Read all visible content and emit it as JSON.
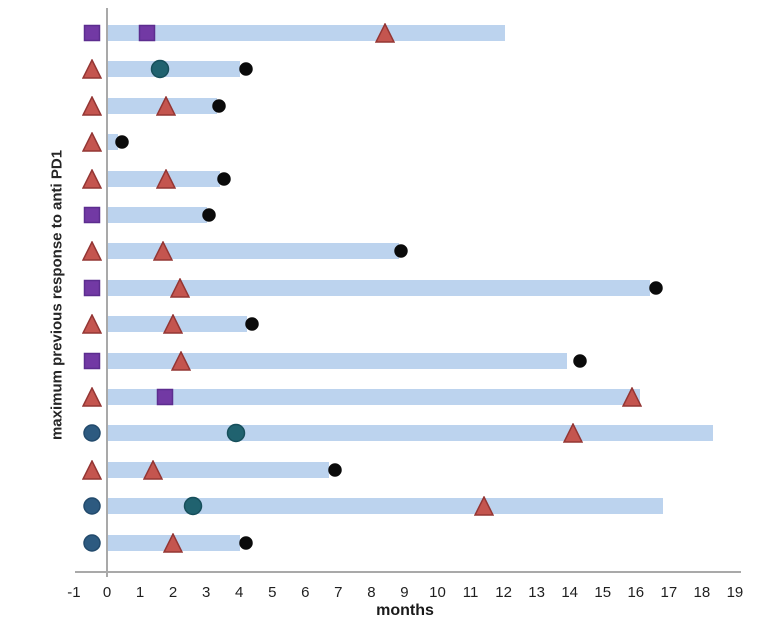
{
  "chart_data": {
    "type": "bar",
    "subtype": "swimmer-plot",
    "title": "",
    "xlabel": "months",
    "ylabel": "maximum previous response to anti PD1",
    "xlim": [
      -1,
      19
    ],
    "xticks": [
      "-1",
      "0",
      "1",
      "2",
      "3",
      "4",
      "5",
      "6",
      "7",
      "8",
      "9",
      "10",
      "11",
      "12",
      "13",
      "14",
      "15",
      "16",
      "17",
      "18",
      "19"
    ],
    "grid": false,
    "legend": null,
    "left_marker_x": -0.45,
    "colors": {
      "bar": "#bcd3ee",
      "axis": "#a9a9a9",
      "text": "#1f1f1f"
    },
    "marker_styles": {
      "purple-square": {
        "shape": "square",
        "fill": "#7239a4",
        "stroke": "#5c2d8f",
        "size": 17
      },
      "red-triangle": {
        "shape": "triangle",
        "fill": "#c4554f",
        "stroke": "#943634",
        "size": 20
      },
      "navy-circle": {
        "shape": "circle",
        "fill": "#2d5a80",
        "stroke": "#224a6c",
        "size": 18
      },
      "teal-circle": {
        "shape": "circle",
        "fill": "#20626f",
        "stroke": "#174f5b",
        "size": 19
      },
      "black-dot": {
        "shape": "circle",
        "fill": "#0b0b0b",
        "stroke": "#0b0b0b",
        "size": 14
      }
    },
    "rows": [
      {
        "left_marker": "purple-square",
        "bar_months": 12.0,
        "events": [
          {
            "marker": "purple-square",
            "x": 1.2
          },
          {
            "marker": "red-triangle",
            "x": 8.4
          }
        ]
      },
      {
        "left_marker": "red-triangle",
        "bar_months": 4.0,
        "events": [
          {
            "marker": "teal-circle",
            "x": 1.6
          },
          {
            "marker": "black-dot",
            "x": 4.2
          }
        ]
      },
      {
        "left_marker": "red-triangle",
        "bar_months": 3.3,
        "events": [
          {
            "marker": "red-triangle",
            "x": 1.8
          },
          {
            "marker": "black-dot",
            "x": 3.4
          }
        ]
      },
      {
        "left_marker": "red-triangle",
        "bar_months": 0.3,
        "events": [
          {
            "marker": "black-dot",
            "x": 0.45
          }
        ]
      },
      {
        "left_marker": "red-triangle",
        "bar_months": 3.4,
        "events": [
          {
            "marker": "red-triangle",
            "x": 1.8
          },
          {
            "marker": "black-dot",
            "x": 3.55
          }
        ]
      },
      {
        "left_marker": "purple-square",
        "bar_months": 3.0,
        "events": [
          {
            "marker": "black-dot",
            "x": 3.1
          }
        ]
      },
      {
        "left_marker": "red-triangle",
        "bar_months": 8.8,
        "events": [
          {
            "marker": "red-triangle",
            "x": 1.7
          },
          {
            "marker": "black-dot",
            "x": 8.9
          }
        ]
      },
      {
        "left_marker": "purple-square",
        "bar_months": 16.4,
        "events": [
          {
            "marker": "red-triangle",
            "x": 2.2
          },
          {
            "marker": "black-dot",
            "x": 16.6
          }
        ]
      },
      {
        "left_marker": "red-triangle",
        "bar_months": 4.2,
        "events": [
          {
            "marker": "red-triangle",
            "x": 2.0
          },
          {
            "marker": "black-dot",
            "x": 4.4
          }
        ]
      },
      {
        "left_marker": "purple-square",
        "bar_months": 13.9,
        "events": [
          {
            "marker": "red-triangle",
            "x": 2.25
          },
          {
            "marker": "black-dot",
            "x": 14.3
          }
        ]
      },
      {
        "left_marker": "red-triangle",
        "bar_months": 16.1,
        "events": [
          {
            "marker": "purple-square",
            "x": 1.75
          },
          {
            "marker": "red-triangle",
            "x": 15.9
          }
        ]
      },
      {
        "left_marker": "navy-circle",
        "bar_months": 18.3,
        "events": [
          {
            "marker": "teal-circle",
            "x": 3.9
          },
          {
            "marker": "red-triangle",
            "x": 14.1
          }
        ]
      },
      {
        "left_marker": "red-triangle",
        "bar_months": 6.7,
        "events": [
          {
            "marker": "red-triangle",
            "x": 1.4
          },
          {
            "marker": "black-dot",
            "x": 6.9
          }
        ]
      },
      {
        "left_marker": "navy-circle",
        "bar_months": 16.8,
        "events": [
          {
            "marker": "teal-circle",
            "x": 2.6
          },
          {
            "marker": "red-triangle",
            "x": 11.4
          }
        ]
      },
      {
        "left_marker": "navy-circle",
        "bar_months": 4.0,
        "events": [
          {
            "marker": "red-triangle",
            "x": 2.0
          },
          {
            "marker": "black-dot",
            "x": 4.2
          }
        ]
      }
    ]
  }
}
